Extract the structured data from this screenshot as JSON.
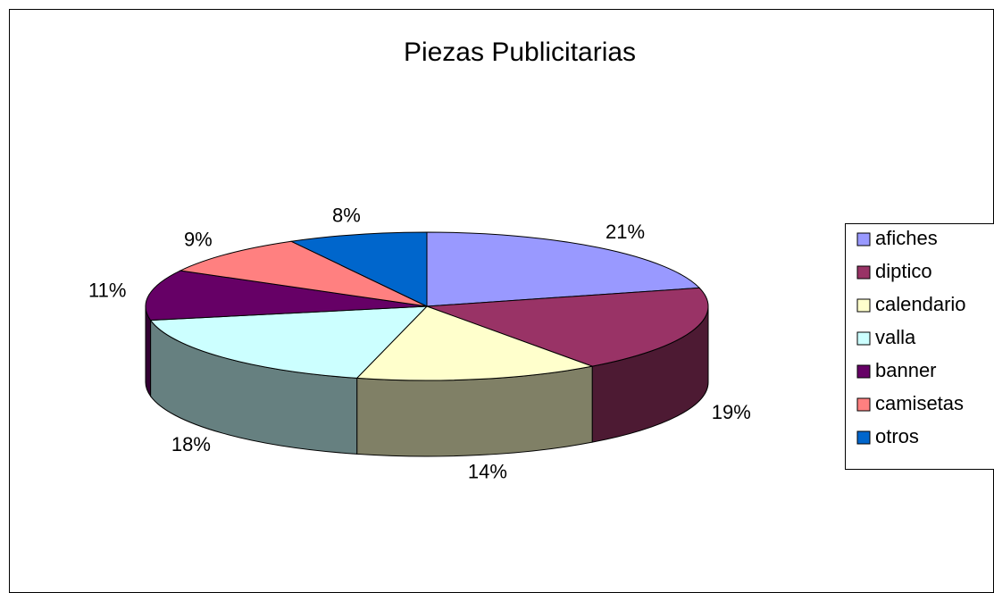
{
  "chart_data": {
    "type": "pie",
    "title": "Piezas Publicitarias",
    "categories": [
      "afiches",
      "diptico",
      "calendario",
      "valla",
      "banner",
      "camisetas",
      "otros"
    ],
    "values": [
      21,
      19,
      14,
      18,
      11,
      9,
      8
    ],
    "value_labels": [
      "21%",
      "19%",
      "14%",
      "18%",
      "11%",
      "9%",
      "8%"
    ],
    "colors": [
      "#9999ff",
      "#993366",
      "#ffffcc",
      "#ccffff",
      "#660066",
      "#ff8080",
      "#0066cc"
    ],
    "three_d": true,
    "legend": "right"
  }
}
